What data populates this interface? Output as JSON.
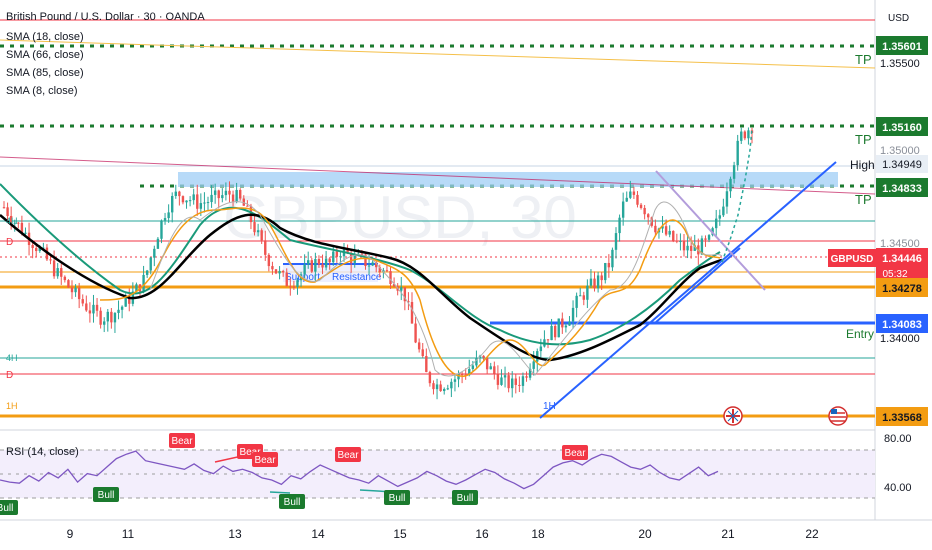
{
  "header": {
    "title": "British Pound / U.S. Dollar · 30 · OANDA",
    "indicators": [
      "SMA (18, close)",
      "SMA (66, close)",
      "SMA (85, close)",
      "SMA (8, close)"
    ]
  },
  "price_axis": {
    "currency": "USD",
    "ticks": [
      "1.35500",
      "1.35000",
      "1.34500",
      "1.34000"
    ],
    "ylim": [
      1.3345,
      1.3575
    ]
  },
  "price_tags": [
    {
      "label": "1.35601",
      "value": 1.35601,
      "color": "#1b7a2e"
    },
    {
      "label": "1.35160",
      "value": 1.3516,
      "color": "#1b7a2e"
    },
    {
      "label": "1.34949",
      "value": 1.34949,
      "color": "#e8eef5"
    },
    {
      "label": "1.34833",
      "value": 1.34833,
      "color": "#1b7a2e"
    },
    {
      "label": "1.34446",
      "value": 1.34446,
      "color": "#f23645"
    },
    {
      "label": "1.34278",
      "value": 1.34278,
      "color": "#f39c12"
    },
    {
      "label": "1.34083",
      "value": 1.34083,
      "color": "#2962ff"
    },
    {
      "label": "1.33568",
      "value": 1.33568,
      "color": "#f39c12"
    }
  ],
  "symbol_badge": "GBPUSD",
  "countdown": "05:32",
  "annotations": {
    "tp": "TP",
    "high": "High",
    "entry": "Entry",
    "support": "Support",
    "resistance": "Resistance",
    "one_h": "1H",
    "tf_4h": "4H",
    "tf_d": "D",
    "tf_1h": "1H",
    "watermark": "GBPUSD, 30"
  },
  "rsi": {
    "label": "RSI (14, close)",
    "ticks": [
      "80.00",
      "40.00"
    ],
    "bear_label": "Bear",
    "bull_label": "Bull"
  },
  "x_axis": {
    "ticks": [
      "9",
      "11",
      "13",
      "14",
      "15",
      "16",
      "18",
      "20",
      "21",
      "22"
    ]
  },
  "colors": {
    "up": "#26a69a",
    "down": "#ef5350",
    "sma18": "#f39c12",
    "sma66": "#1a9a7a",
    "sma85": "#000000",
    "sma8": "#b0b0b0",
    "rsi": "#7e57c2",
    "trendline": "#2962ff"
  },
  "chart_data": {
    "type": "candlestick",
    "title": "British Pound / U.S. Dollar · 30 · OANDA",
    "xlabel": "",
    "ylabel": "",
    "x_ticks": [
      "9",
      "11",
      "13",
      "14",
      "15",
      "16",
      "18",
      "20",
      "21",
      "22"
    ],
    "ylim": [
      1.3345,
      1.3575
    ],
    "levels": [
      {
        "label": "TP",
        "value": 1.35601
      },
      {
        "label": "TP",
        "value": 1.3516
      },
      {
        "label": "High",
        "value": 1.34949
      },
      {
        "label": "TP",
        "value": 1.34833
      },
      {
        "label": "GBPUSD",
        "value": 1.34446
      },
      {
        "label": "",
        "value": 1.34278
      },
      {
        "label": "Entry",
        "value": 1.34083
      },
      {
        "label": "",
        "value": 1.33568
      }
    ],
    "close_path": [
      1.347,
      1.3462,
      1.3455,
      1.3448,
      1.344,
      1.3432,
      1.3425,
      1.3418,
      1.3412,
      1.3408,
      1.341,
      1.3415,
      1.3422,
      1.343,
      1.3452,
      1.347,
      1.3478,
      1.3475,
      1.3472,
      1.3474,
      1.3476,
      1.3478,
      1.3472,
      1.346,
      1.3445,
      1.3435,
      1.3428,
      1.343,
      1.3436,
      1.344,
      1.3438,
      1.3446,
      1.3442,
      1.344,
      1.3438,
      1.3434,
      1.343,
      1.342,
      1.3395,
      1.3375,
      1.337,
      1.3372,
      1.3375,
      1.338,
      1.3385,
      1.3378,
      1.3372,
      1.337,
      1.3375,
      1.339,
      1.3398,
      1.3402,
      1.3408,
      1.3418,
      1.3425,
      1.343,
      1.344,
      1.347,
      1.3478,
      1.347,
      1.346,
      1.3455,
      1.345,
      1.3446,
      1.3447,
      1.345,
      1.3465,
      1.349,
      1.351,
      1.3516
    ],
    "rsi_path": [
      48,
      46,
      45,
      52,
      47,
      55,
      50,
      58,
      46,
      54,
      52,
      60,
      68,
      72,
      75,
      66,
      64,
      62,
      60,
      58,
      63,
      57,
      54,
      61,
      56,
      58,
      55,
      50,
      48,
      44,
      52,
      49,
      56,
      62,
      58,
      54,
      50,
      48,
      45,
      52,
      47,
      42,
      46,
      50,
      56,
      52,
      47,
      44,
      48,
      53,
      58,
      55,
      49,
      45,
      40,
      44,
      52,
      60,
      64,
      66,
      62,
      68,
      72,
      70,
      65,
      60,
      58,
      62,
      55,
      50,
      48,
      54,
      60,
      52,
      56
    ]
  }
}
